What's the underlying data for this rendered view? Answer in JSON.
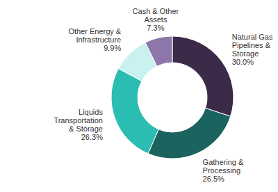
{
  "chart_data": {
    "type": "pie",
    "categories": [
      "Natural Gas Pipelines & Storage",
      "Gathering & Processing",
      "Liquids Transportation & Storage",
      "Other Energy & Infrastructure",
      "Cash & Other Assets"
    ],
    "values": [
      30.0,
      26.5,
      26.3,
      9.9,
      7.3
    ],
    "value_labels": [
      "30.0%",
      "26.5%",
      "26.3%",
      "9.9%",
      "7.3%"
    ],
    "colors": [
      "#3b2a48",
      "#1b635e",
      "#2bbcb2",
      "#c9f1f0",
      "#8f76aa"
    ],
    "data_labels": true
  }
}
